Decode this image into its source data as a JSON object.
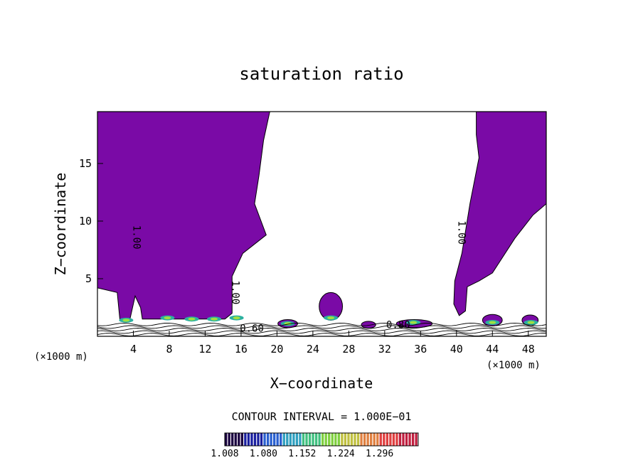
{
  "chart_data": {
    "type": "contour",
    "title": "saturation ratio",
    "xlabel": "X−coordinate",
    "ylabel": "Z−coordinate",
    "x_unit_left": "(×1000 m)",
    "x_unit_right": "(×1000 m)",
    "xlim": [
      0,
      50
    ],
    "ylim": [
      0,
      19.5
    ],
    "x_ticks": [
      4,
      8,
      12,
      16,
      20,
      24,
      28,
      32,
      36,
      40,
      44,
      48
    ],
    "y_ticks": [
      5,
      10,
      15
    ],
    "contour_interval_text": "CONTOUR INTERVAL = 1.000E−01",
    "contour_labels": [
      {
        "text": "1.00",
        "x": 4.0,
        "z": 8.6
      },
      {
        "text": "1.00",
        "x": 15.0,
        "z": 3.8
      },
      {
        "text": "1.00",
        "x": 40.2,
        "z": 9.0
      },
      {
        "text": "0.60",
        "x": 17.2,
        "z": 0.4
      },
      {
        "text": "0.80",
        "x": 33.5,
        "z": 0.7
      }
    ],
    "filled_regions": [
      {
        "name": "supersaturated",
        "fill": "#7a0aa6",
        "boundary": [
          [
            0,
            19.5
          ],
          [
            19.2,
            19.5
          ],
          [
            18.5,
            17
          ],
          [
            18.0,
            14
          ],
          [
            17.5,
            11.5
          ],
          [
            18.8,
            8.8
          ],
          [
            16.2,
            7.2
          ],
          [
            15.0,
            5.2
          ],
          [
            15.0,
            2.0
          ],
          [
            14.2,
            1.5
          ],
          [
            5.0,
            1.5
          ],
          [
            4.8,
            2.5
          ],
          [
            4.2,
            3.5
          ],
          [
            3.6,
            1.4
          ],
          [
            2.5,
            1.4
          ],
          [
            2.2,
            3.8
          ],
          [
            0,
            4.2
          ]
        ]
      },
      {
        "name": "supersaturated-east",
        "fill": "#7a0aa6",
        "boundary": [
          [
            42.2,
            19.5
          ],
          [
            50,
            19.5
          ],
          [
            50,
            11.5
          ],
          [
            48.5,
            10.5
          ],
          [
            46.5,
            8.5
          ],
          [
            44,
            5.5
          ],
          [
            42.5,
            4.8
          ],
          [
            41.2,
            4.3
          ],
          [
            41.0,
            2.2
          ],
          [
            40.3,
            1.8
          ],
          [
            39.7,
            2.8
          ],
          [
            39.8,
            4.8
          ],
          [
            40.6,
            7.2
          ],
          [
            41.5,
            11.5
          ],
          [
            42.5,
            15.5
          ],
          [
            42.2,
            17.5
          ]
        ]
      },
      {
        "name": "surface-cloud-cells",
        "fill": "#7a0aa6",
        "ellipses": [
          [
            26,
            2.6,
            1.3,
            1.2
          ],
          [
            21.2,
            1.1,
            1.1,
            0.35
          ],
          [
            30.2,
            1.0,
            0.8,
            0.3
          ],
          [
            35.3,
            1.1,
            2.0,
            0.35
          ],
          [
            44.0,
            1.4,
            1.1,
            0.5
          ],
          [
            48.2,
            1.4,
            0.9,
            0.45
          ]
        ]
      }
    ],
    "colorbar": {
      "ticks": [
        1.008,
        1.08,
        1.152,
        1.224,
        1.296
      ],
      "tick_labels": [
        "1.008",
        "1.080",
        "1.152",
        "1.224",
        "1.296"
      ],
      "colors": [
        "#1a0040",
        "#1a20a0",
        "#2a60d0",
        "#30a0c0",
        "#40c080",
        "#80d040",
        "#c0c040",
        "#e08040",
        "#e04040",
        "#c02040"
      ]
    }
  }
}
